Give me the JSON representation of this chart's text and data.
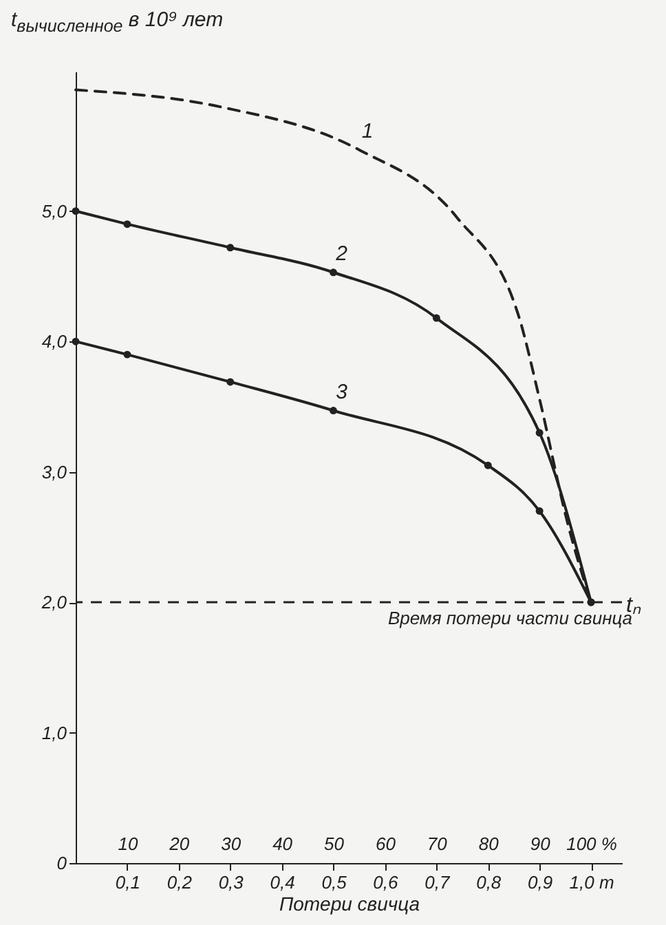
{
  "chart_data": {
    "type": "line",
    "ylabel": "t$_{вычисленное}$ в 10⁹ лет",
    "xlabel": "Потери свичца",
    "xlim": [
      0,
      1.06
    ],
    "ylim": [
      0,
      6.07
    ],
    "xticks": [
      {
        "value": 0.1,
        "label": "0,1"
      },
      {
        "value": 0.2,
        "label": "0,2"
      },
      {
        "value": 0.3,
        "label": "0,3"
      },
      {
        "value": 0.4,
        "label": "0,4"
      },
      {
        "value": 0.5,
        "label": "0,5"
      },
      {
        "value": 0.6,
        "label": "0,6"
      },
      {
        "value": 0.7,
        "label": "0,7"
      },
      {
        "value": 0.8,
        "label": "0,8"
      },
      {
        "value": 0.9,
        "label": "0,9"
      },
      {
        "value": 1.0,
        "label": "1,0 m"
      }
    ],
    "x2lim": [
      0,
      106
    ],
    "x2ticks": [
      10,
      20,
      30,
      40,
      50,
      60,
      70,
      80,
      90,
      {
        "value": 100,
        "label": "100 %"
      }
    ],
    "yticks": [
      0,
      {
        "value": 1,
        "label": "1,0"
      },
      {
        "value": 2,
        "label": "2,0"
      },
      {
        "value": 3,
        "label": "3,0"
      },
      {
        "value": 4,
        "label": "4,0"
      },
      {
        "value": 5,
        "label": "5,0"
      }
    ],
    "grid": false,
    "series": [
      {
        "name": "1",
        "color": "#222222",
        "line_style": "dashed",
        "marker": "none",
        "x": [
          0,
          0.28,
          0.55,
          0.74,
          0.86,
          0.9,
          0.955,
          1.0
        ],
        "values": [
          5.93,
          5.8,
          5.47,
          4.95,
          4.19,
          3.56,
          2.6,
          2.0
        ]
      },
      {
        "name": "2",
        "color": "#222222",
        "line_style": "solid",
        "marker": "circle",
        "x": [
          0,
          0.1,
          0.3,
          0.5,
          0.7,
          0.9,
          1.0
        ],
        "values": [
          5.0,
          4.9,
          4.72,
          4.53,
          4.18,
          3.3,
          2.0
        ]
      },
      {
        "name": "3",
        "color": "#222222",
        "line_style": "solid",
        "marker": "circle",
        "x": [
          0,
          0.1,
          0.3,
          0.5,
          0.8,
          0.9,
          1.0
        ],
        "values": [
          4.0,
          3.9,
          3.69,
          3.47,
          3.05,
          2.7,
          2.0
        ]
      }
    ],
    "ref_lines": [
      {
        "axis": "y",
        "value": 2.0,
        "label": "tₙ",
        "line_style": "dashed",
        "color": "#222222"
      }
    ],
    "annotations": [
      {
        "text": "Время потери части свинца",
        "x": 1.0,
        "y": 2.0
      }
    ]
  }
}
